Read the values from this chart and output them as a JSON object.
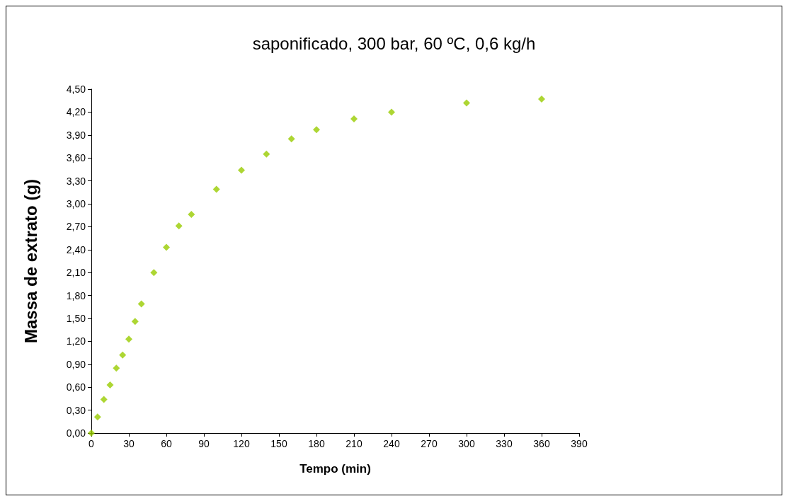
{
  "chart_data": {
    "type": "scatter",
    "title": "saponificado, 300 bar, 60 ºC, 0,6 kg/h",
    "xlabel": "Tempo (min)",
    "ylabel": "Massa de extrato (g)",
    "x": [
      0,
      5,
      10,
      15,
      20,
      25,
      30,
      35,
      40,
      50,
      60,
      70,
      80,
      100,
      120,
      140,
      160,
      180,
      210,
      240,
      300,
      360
    ],
    "series": [
      {
        "color": "#99cc00",
        "values": [
          0,
          0.21,
          0.44,
          0.63,
          0.85,
          1.02,
          1.23,
          1.46,
          1.69,
          2.1,
          2.43,
          2.71,
          2.86,
          3.19,
          3.44,
          3.65,
          3.85,
          3.97,
          4.11,
          4.2,
          4.32,
          4.37
        ]
      }
    ],
    "xlim": [
      0,
      390
    ],
    "xticks": [
      0,
      30,
      60,
      90,
      120,
      150,
      180,
      210,
      240,
      270,
      300,
      330,
      360,
      390
    ],
    "ylim": [
      0,
      4.5
    ],
    "yticks": [
      {
        "value": 0,
        "label": "0,00"
      },
      {
        "value": 0.3,
        "label": "0,30"
      },
      {
        "value": 0.6,
        "label": "0,60"
      },
      {
        "value": 0.9,
        "label": "0,90"
      },
      {
        "value": 1.2,
        "label": "1,20"
      },
      {
        "value": 1.5,
        "label": "1,50"
      },
      {
        "value": 1.8,
        "label": "1,80"
      },
      {
        "value": 2.1,
        "label": "2,10"
      },
      {
        "value": 2.4,
        "label": "2,40"
      },
      {
        "value": 2.7,
        "label": "2,70"
      },
      {
        "value": 3.0,
        "label": "3,00"
      },
      {
        "value": 3.3,
        "label": "3,30"
      },
      {
        "value": 3.6,
        "label": "3,60"
      },
      {
        "value": 3.9,
        "label": "3,90"
      },
      {
        "value": 4.2,
        "label": "4,20"
      },
      {
        "value": 4.5,
        "label": "4,50"
      }
    ],
    "marker": "diamond"
  }
}
